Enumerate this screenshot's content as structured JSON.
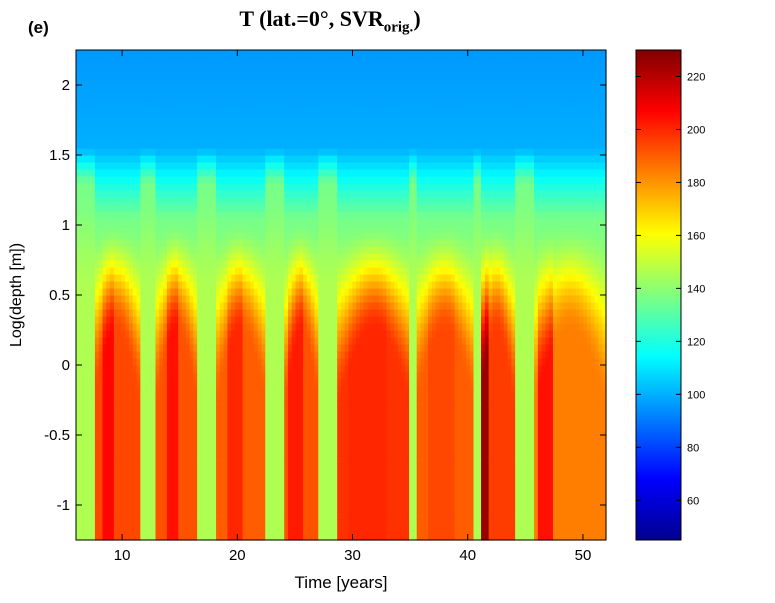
{
  "panel_label": "(e)",
  "title_main": "T (lat.=0°, SVR",
  "title_sub": "orig.",
  "title_end": ")",
  "chart_data": {
    "type": "heatmap",
    "xlabel": "Time [years]",
    "ylabel": "Log(depth [m])",
    "xlim": [
      6,
      52
    ],
    "ylim": [
      -1.25,
      2.25
    ],
    "xticks": [
      10,
      20,
      30,
      40,
      50
    ],
    "yticks": [
      -1,
      -0.5,
      0,
      0.5,
      1,
      1.5,
      2
    ],
    "colorbar": {
      "min": 45,
      "max": 230,
      "ticks": [
        60,
        80,
        100,
        120,
        140,
        160,
        180,
        200,
        220
      ]
    },
    "surface_temperature": 100,
    "warm_columns": [
      {
        "start": 7.5,
        "end": 11.5,
        "peak": 194,
        "core": [
          8.2,
          9.3
        ],
        "core_peak": 206
      },
      {
        "start": 13.0,
        "end": 16.5,
        "peak": 192,
        "core": [
          13.8,
          14.8
        ],
        "core_peak": 204
      },
      {
        "start": 18.2,
        "end": 22.5,
        "peak": 190,
        "core": [
          19.0,
          20.5
        ],
        "core_peak": 200
      },
      {
        "start": 24.2,
        "end": 27.0,
        "peak": 192,
        "core": [
          24.5,
          25.6
        ],
        "core_peak": 202
      },
      {
        "start": 28.8,
        "end": 35.0,
        "peak": 198,
        "core": [
          29.5,
          33.0
        ],
        "core_peak": 200
      },
      {
        "start": 35.5,
        "end": 40.5,
        "peak": 190,
        "core": [
          36.5,
          39.0
        ],
        "core_peak": 194
      },
      {
        "start": 41.0,
        "end": 44.0,
        "peak": 196,
        "core": [
          41.3,
          41.9
        ],
        "core_peak": 226
      },
      {
        "start": 45.8,
        "end": 52.0,
        "peak": 184,
        "core": [
          46.2,
          47.3
        ],
        "core_peak": 204
      }
    ]
  }
}
